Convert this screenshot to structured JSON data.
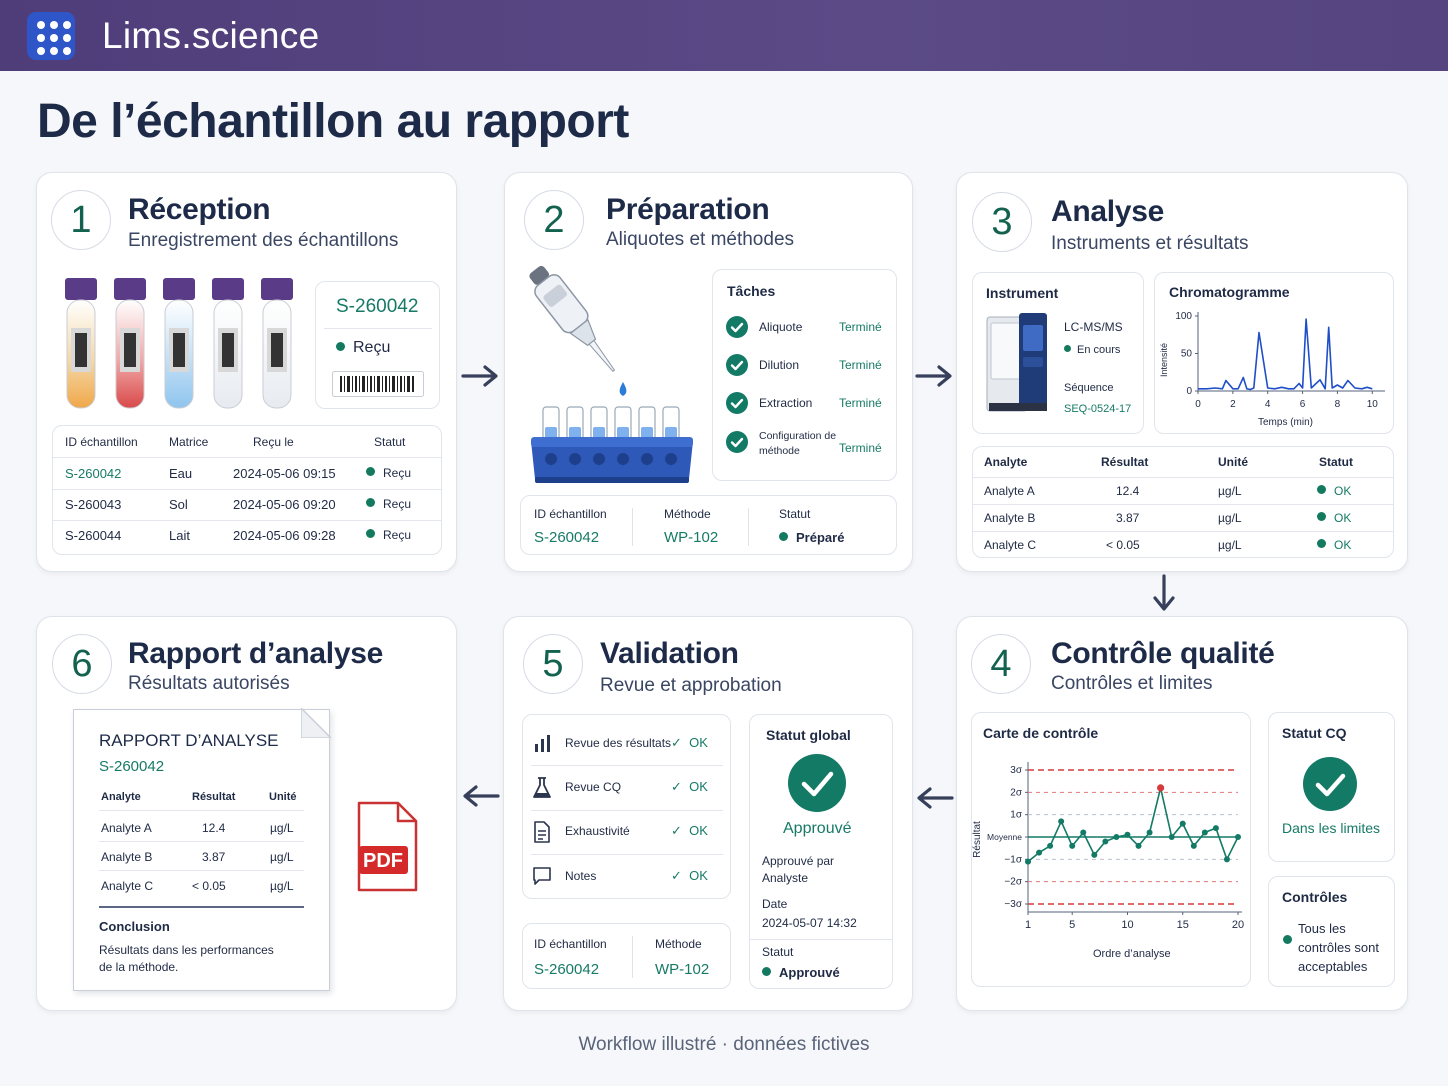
{
  "app": {
    "brand": "Lims.science"
  },
  "page": {
    "title": "De l’échantillon au rapport",
    "footer": "Workflow illustré · données fictives"
  },
  "colors": {
    "header": "#55447f",
    "accent": "#137a66",
    "logo": "#2f56c9",
    "pdf": "#d42a2a"
  },
  "step1": {
    "number": "1",
    "title": "Réception",
    "subtitle": "Enregistrement des échantillons",
    "sample_id": "S-260042",
    "status": "Reçu",
    "table": {
      "headers": [
        "ID échantillon",
        "Matrice",
        "Reçu le",
        "Statut"
      ],
      "rows": [
        {
          "id": "S-260042",
          "matrix": "Eau",
          "date": "2024-05-06 09:15",
          "status": "Reçu"
        },
        {
          "id": "S-260043",
          "matrix": "Sol",
          "date": "2024-05-06 09:20",
          "status": "Reçu"
        },
        {
          "id": "S-260044",
          "matrix": "Lait",
          "date": "2024-05-06 09:28",
          "status": "Reçu"
        }
      ]
    }
  },
  "step2": {
    "number": "2",
    "title": "Préparation",
    "subtitle": "Aliquotes et méthodes",
    "tasks_title": "Tâches",
    "tasks": [
      {
        "label": "Aliquote",
        "status": "Terminé"
      },
      {
        "label": "Dilution",
        "status": "Terminé"
      },
      {
        "label": "Extraction",
        "status": "Terminé"
      },
      {
        "label": "Configuration de méthode",
        "status": "Terminé"
      }
    ],
    "info": {
      "id_label": "ID échantillon",
      "id": "S-260042",
      "method_label": "Méthode",
      "method": "WP-102",
      "status_label": "Statut",
      "status": "Préparé"
    }
  },
  "step3": {
    "number": "3",
    "title": "Analyse",
    "subtitle": "Instruments et résultats",
    "instrument": {
      "title": "Instrument",
      "name": "LC-MS/MS",
      "state": "En cours",
      "seq_label": "Séquence",
      "seq": "SEQ-0524-17"
    },
    "chroma": {
      "title": "Chromatogramme",
      "ylabel": "Intensité",
      "xlabel": "Temps (min)",
      "yticks": [
        "100",
        "50",
        "0"
      ],
      "xticks": [
        "0",
        "2",
        "4",
        "6",
        "8",
        "10"
      ]
    },
    "table": {
      "headers": [
        "Analyte",
        "Résultat",
        "Unité",
        "Statut"
      ],
      "rows": [
        {
          "analyte": "Analyte A",
          "result": "12.4",
          "unit": "µg/L",
          "status": "OK"
        },
        {
          "analyte": "Analyte B",
          "result": "3.87",
          "unit": "µg/L",
          "status": "OK"
        },
        {
          "analyte": "Analyte C",
          "result": "< 0.05",
          "unit": "µg/L",
          "status": "OK"
        }
      ]
    }
  },
  "step4": {
    "number": "4",
    "title": "Contrôle qualité",
    "subtitle": "Contrôles et limites",
    "chart": {
      "title": "Carte de contrôle",
      "ylabel": "Résultat",
      "xlabel": "Ordre d’analyse",
      "ylabels": [
        "3σ",
        "2σ",
        "1σ",
        "Moyenne",
        "−1σ",
        "−2σ",
        "−3σ"
      ],
      "xticks": [
        "1",
        "5",
        "10",
        "15",
        "20"
      ]
    },
    "qc_status": {
      "title": "Statut CQ",
      "value": "Dans les limites"
    },
    "controls": {
      "title": "Contrôles",
      "value": "Tous les contrôles sont acceptables"
    }
  },
  "step5": {
    "number": "5",
    "title": "Validation",
    "subtitle": "Revue et approbation",
    "checks": [
      {
        "label": "Revue des résultats",
        "status": "OK"
      },
      {
        "label": "Revue CQ",
        "status": "OK"
      },
      {
        "label": "Exhaustivité",
        "status": "OK"
      },
      {
        "label": "Notes",
        "status": "OK"
      }
    ],
    "global": {
      "title": "Statut global",
      "value": "Approuvé",
      "approved_by_label": "Approuvé par",
      "approved_by": "Analyste",
      "date_label": "Date",
      "date": "2024-05-07 14:32",
      "status_label": "Statut",
      "status": "Approuvé"
    },
    "info": {
      "id_label": "ID échantillon",
      "id": "S-260042",
      "method_label": "Méthode",
      "method": "WP-102"
    }
  },
  "step6": {
    "number": "6",
    "title": "Rapport d’analyse",
    "subtitle": "Résultats autorisés",
    "report": {
      "title": "RAPPORT D’ANALYSE",
      "sample": "S-260042",
      "headers": [
        "Analyte",
        "Résultat",
        "Unité"
      ],
      "rows": [
        {
          "analyte": "Analyte A",
          "result": "12.4",
          "unit": "µg/L"
        },
        {
          "analyte": "Analyte B",
          "result": "3.87",
          "unit": "µg/L"
        },
        {
          "analyte": "Analyte C",
          "result": "< 0.05",
          "unit": "µg/L"
        }
      ],
      "conclusion_title": "Conclusion",
      "conclusion_line1": "Résultats dans les performances",
      "conclusion_line2": "de la méthode."
    },
    "pdf_label": "PDF"
  },
  "chart_data": [
    {
      "type": "line",
      "title": "Chromatogramme",
      "xlabel": "Temps (min)",
      "ylabel": "Intensité",
      "xlim": [
        0,
        10.5
      ],
      "ylim": [
        0,
        100
      ],
      "x": [
        0,
        0.5,
        1,
        1.4,
        1.6,
        2.0,
        2.3,
        2.6,
        2.8,
        3.0,
        3.2,
        3.5,
        4.0,
        4.4,
        4.8,
        5.2,
        5.5,
        5.8,
        6.0,
        6.2,
        6.5,
        7.0,
        7.3,
        7.5,
        7.7,
        8.0,
        8.3,
        8.6,
        9.0,
        9.4,
        9.7,
        10.0
      ],
      "y": [
        3,
        3,
        4,
        3,
        14,
        3,
        3,
        18,
        3,
        2,
        4,
        78,
        4,
        3,
        5,
        3,
        3,
        10,
        4,
        96,
        4,
        15,
        3,
        85,
        4,
        8,
        4,
        14,
        4,
        3,
        5,
        3
      ]
    },
    {
      "type": "line",
      "title": "Carte de contrôle",
      "xlabel": "Ordre d’analyse",
      "ylabel": "Résultat",
      "xlim": [
        1,
        20
      ],
      "ylim": [
        -3,
        3
      ],
      "x": [
        1,
        2,
        3,
        4,
        5,
        6,
        7,
        8,
        9,
        10,
        11,
        12,
        13,
        14,
        15,
        16,
        17,
        18,
        19,
        20
      ],
      "y": [
        -1.1,
        -0.7,
        -0.4,
        0.7,
        -0.4,
        0.2,
        -0.8,
        -0.2,
        0.0,
        0.1,
        -0.4,
        0.2,
        2.2,
        0.0,
        0.6,
        -0.4,
        0.2,
        0.4,
        -1.0,
        0.0
      ],
      "outlier_index": 12
    }
  ]
}
